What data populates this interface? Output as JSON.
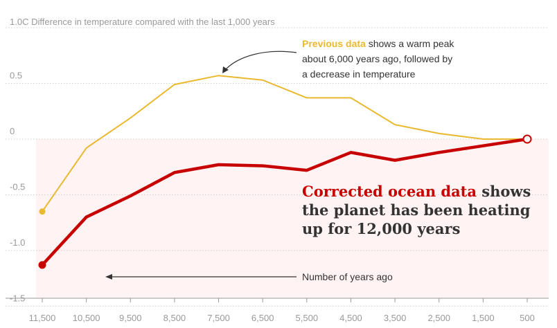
{
  "chart_data": {
    "type": "line",
    "y_axis_title": "1.0C Difference in temperature compared with the last 1,000 years",
    "x_axis_label": "Number of years ago",
    "categories": [
      "11,500",
      "10,500",
      "9,500",
      "8,500",
      "7,500",
      "6,500",
      "5,500",
      "4,500",
      "3,500",
      "2,500",
      "1,500",
      "500"
    ],
    "y_ticks": [
      "0.5",
      "0",
      "-0.5",
      "-1.0",
      "-1.5"
    ],
    "ylim": [
      -1.5,
      1.0
    ],
    "xlim": [
      11500,
      500
    ],
    "grid": true,
    "series": [
      {
        "name": "Previous data",
        "color": "#e9b92f",
        "x": [
          11500,
          10500,
          9500,
          8500,
          7500,
          6500,
          5500,
          4500,
          3500,
          2500,
          1500,
          500
        ],
        "values": [
          -0.65,
          -0.08,
          0.19,
          0.49,
          0.57,
          0.53,
          0.37,
          0.37,
          0.13,
          0.05,
          0.0,
          0.0
        ]
      },
      {
        "name": "Corrected ocean data",
        "color": "#c70000",
        "x": [
          11500,
          10500,
          9500,
          8500,
          7500,
          6500,
          5500,
          4500,
          3500,
          2500,
          1500,
          500
        ],
        "values": [
          -1.13,
          -0.7,
          -0.51,
          -0.3,
          -0.23,
          -0.24,
          -0.28,
          -0.12,
          -0.19,
          -0.12,
          -0.06,
          0.0
        ]
      }
    ],
    "annotations": {
      "previous": {
        "highlight": "Previous data",
        "lines": [
          " shows a warm peak",
          "about 6,000 years ago, followed by",
          "a decrease in temperature"
        ]
      },
      "corrected": {
        "highlight": "Corrected ocean data",
        "lines": [
          " shows",
          "the planet has been heating",
          "up for 12,000 years"
        ]
      }
    }
  }
}
